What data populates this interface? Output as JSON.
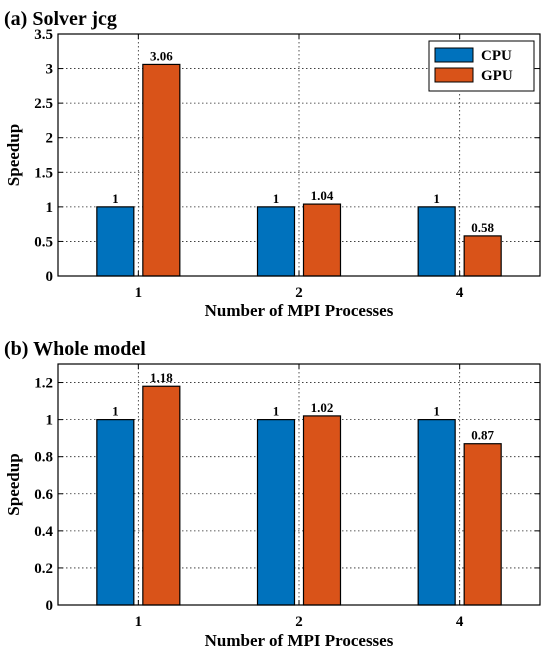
{
  "colors": {
    "cpu": "#0072BD",
    "gpu": "#D95319"
  },
  "chart_data": [
    {
      "type": "bar",
      "title": "(a) Solver jcg",
      "xlabel": "Number of MPI Processes",
      "ylabel": "Speedup",
      "categories": [
        "1",
        "2",
        "4"
      ],
      "ylim": [
        0,
        3.5
      ],
      "yticks": [
        0,
        0.5,
        1,
        1.5,
        2,
        2.5,
        3,
        3.5
      ],
      "ytick_labels": [
        "0",
        "0.5",
        "1",
        "1.5",
        "2",
        "2.5",
        "3",
        "3.5"
      ],
      "grid": true,
      "legend": "top-right",
      "series": [
        {
          "name": "CPU",
          "values": [
            1,
            1,
            1
          ],
          "labels": [
            "1",
            "1",
            "1"
          ]
        },
        {
          "name": "GPU",
          "values": [
            3.06,
            1.04,
            0.58
          ],
          "labels": [
            "3.06",
            "1.04",
            "0.58"
          ]
        }
      ]
    },
    {
      "type": "bar",
      "title": "(b) Whole model",
      "xlabel": "Number of MPI Processes",
      "ylabel": "Speedup",
      "categories": [
        "1",
        "2",
        "4"
      ],
      "ylim": [
        0,
        1.3
      ],
      "yticks": [
        0,
        0.2,
        0.4,
        0.6,
        0.8,
        1,
        1.2
      ],
      "ytick_labels": [
        "0",
        "0.2",
        "0.4",
        "0.6",
        "0.8",
        "1",
        "1.2"
      ],
      "grid": true,
      "legend": "none",
      "series": [
        {
          "name": "CPU",
          "values": [
            1,
            1,
            1
          ],
          "labels": [
            "1",
            "1",
            "1"
          ]
        },
        {
          "name": "GPU",
          "values": [
            1.18,
            1.02,
            0.87
          ],
          "labels": [
            "1.18",
            "1.02",
            "0.87"
          ]
        }
      ]
    }
  ]
}
